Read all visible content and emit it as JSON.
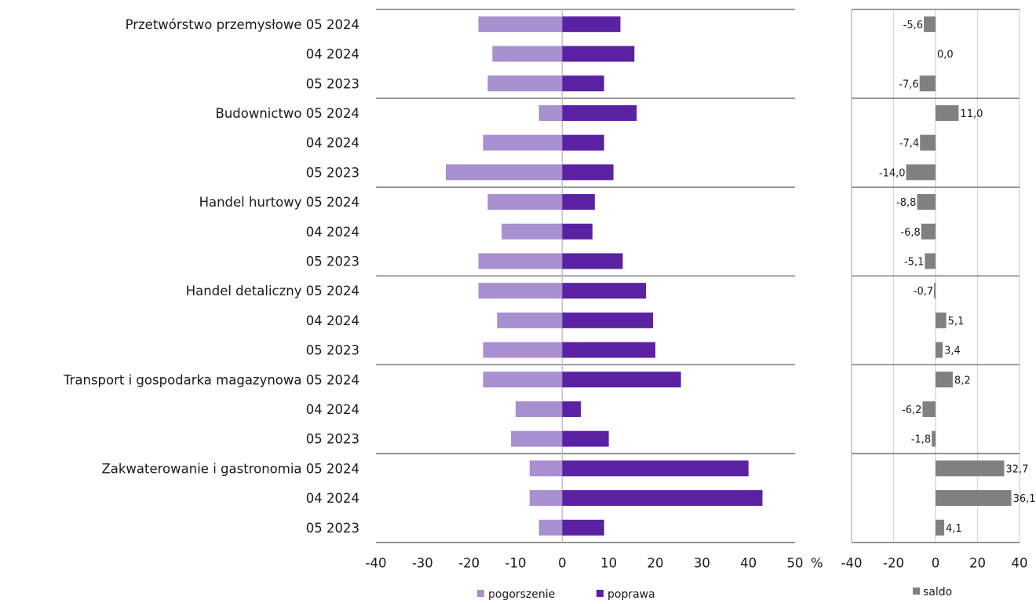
{
  "chart_data": [
    {
      "type": "bar",
      "orientation": "horizontal",
      "categories": [
        "Przetwórstwo przemysłowe 05 2024",
        "04 2024",
        "05 2023",
        "Budownictwo 05 2024",
        "04 2024",
        "05 2023",
        "Handel hurtowy 05 2024",
        "04 2024",
        "05 2023",
        "Handel detaliczny 05 2024",
        "04 2024",
        "05 2023",
        "Transport i gospodarka magazynowa 05 2024",
        "04 2024",
        "05 2023",
        "Zakwaterowanie i gastronomia 05 2024",
        "04 2024",
        "05 2023"
      ],
      "series": [
        {
          "name": "pogorszenie",
          "color": "#a88fcf",
          "values": [
            -18,
            -15,
            -16,
            -5,
            -17,
            -25,
            -16,
            -13,
            -18,
            -18,
            -14,
            -17,
            -17,
            -10,
            -11,
            -7,
            -7,
            -5
          ]
        },
        {
          "name": "poprawa",
          "color": "#5a22a3",
          "values": [
            12.5,
            15.5,
            9,
            16,
            9,
            11,
            7,
            6.5,
            13,
            18,
            19.5,
            20,
            25.5,
            4,
            10,
            40,
            43,
            9
          ]
        }
      ],
      "xlim": [
        -40,
        50
      ],
      "xticks": [
        "-40",
        "-30",
        "-20",
        "-10",
        "0",
        "10",
        "20",
        "30",
        "40",
        "50"
      ],
      "xunit": "%",
      "grid": false,
      "legend": "bottom"
    },
    {
      "type": "bar",
      "orientation": "horizontal",
      "series": [
        {
          "name": "saldo",
          "color": "#808080",
          "values": [
            -5.6,
            0.0,
            -7.6,
            11.0,
            -7.4,
            -14.0,
            -8.8,
            -6.8,
            -5.1,
            -0.7,
            5.1,
            3.4,
            8.2,
            -6.2,
            -1.8,
            32.7,
            36.1,
            4.1
          ],
          "labels": [
            "-5,6",
            "0,0",
            "-7,6",
            "11,0",
            "-7,4",
            "-14,0",
            "-8,8",
            "-6,8",
            "-5,1",
            "-0,7",
            "5,1",
            "3,4",
            "8,2",
            "-6,2",
            "-1,8",
            "32,7",
            "36,1",
            "4,1"
          ]
        }
      ],
      "xlim": [
        -40,
        40
      ],
      "xticks": [
        "-40",
        "-20",
        "0",
        "20",
        "40"
      ],
      "grid": true,
      "legend": "bottom"
    }
  ]
}
